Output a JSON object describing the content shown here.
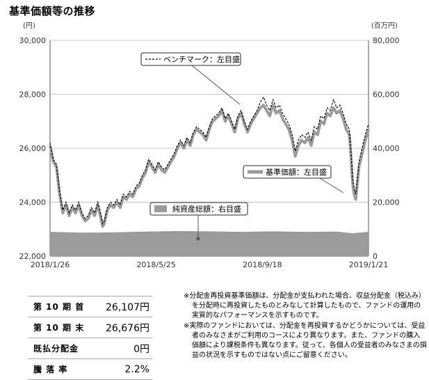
{
  "title": "基準価額等の推移",
  "chart_data": {
    "type": "line",
    "left_axis": {
      "unit": "(円)",
      "min": 22000,
      "max": 30000,
      "ticks": [
        "22,000",
        "24,000",
        "26,000",
        "28,000",
        "30,000"
      ],
      "tick_values": [
        22000,
        24000,
        26000,
        28000,
        30000
      ]
    },
    "right_axis": {
      "unit": "(百万円)",
      "min": 0,
      "max": 80000,
      "ticks": [
        "0",
        "20,000",
        "40,000",
        "60,000",
        "80,000"
      ],
      "tick_values": [
        0,
        20000,
        40000,
        60000,
        80000
      ]
    },
    "x_ticks": [
      "2018/1/26",
      "2018/5/25",
      "2018/9/18",
      "2019/1/21"
    ],
    "x_tick_positions": [
      0,
      0.3333,
      0.6667,
      1.0
    ],
    "grid": "horizontal",
    "series": [
      {
        "name": "基準価額：左目盛",
        "style": "thick gray line",
        "color": "#9b9b9b",
        "axis": "left",
        "points": [
          [
            0,
            26100
          ],
          [
            0.01,
            25500
          ],
          [
            0.02,
            25300
          ],
          [
            0.03,
            24300
          ],
          [
            0.04,
            23600
          ],
          [
            0.05,
            23900
          ],
          [
            0.06,
            23500
          ],
          [
            0.07,
            23800
          ],
          [
            0.08,
            23600
          ],
          [
            0.09,
            23900
          ],
          [
            0.1,
            23500
          ],
          [
            0.11,
            23300
          ],
          [
            0.12,
            23400
          ],
          [
            0.13,
            23700
          ],
          [
            0.14,
            23500
          ],
          [
            0.15,
            23900
          ],
          [
            0.16,
            23400
          ],
          [
            0.165,
            23100
          ],
          [
            0.17,
            23200
          ],
          [
            0.18,
            23700
          ],
          [
            0.19,
            23900
          ],
          [
            0.2,
            23800
          ],
          [
            0.21,
            24000
          ],
          [
            0.22,
            23800
          ],
          [
            0.23,
            24200
          ],
          [
            0.24,
            24100
          ],
          [
            0.25,
            24300
          ],
          [
            0.26,
            24200
          ],
          [
            0.27,
            24500
          ],
          [
            0.28,
            24600
          ],
          [
            0.29,
            24900
          ],
          [
            0.3,
            25100
          ],
          [
            0.31,
            25500
          ],
          [
            0.32,
            25300
          ],
          [
            0.33,
            25100
          ],
          [
            0.34,
            25400
          ],
          [
            0.35,
            25200
          ],
          [
            0.36,
            25100
          ],
          [
            0.37,
            25300
          ],
          [
            0.38,
            25500
          ],
          [
            0.39,
            25700
          ],
          [
            0.4,
            26000
          ],
          [
            0.41,
            26200
          ],
          [
            0.42,
            26000
          ],
          [
            0.43,
            26300
          ],
          [
            0.44,
            26100
          ],
          [
            0.45,
            26500
          ],
          [
            0.46,
            26700
          ],
          [
            0.47,
            26600
          ],
          [
            0.48,
            26500
          ],
          [
            0.49,
            26300
          ],
          [
            0.5,
            26700
          ],
          [
            0.51,
            27000
          ],
          [
            0.52,
            27100
          ],
          [
            0.53,
            27200
          ],
          [
            0.54,
            27400
          ],
          [
            0.55,
            27000
          ],
          [
            0.56,
            27200
          ],
          [
            0.57,
            26900
          ],
          [
            0.58,
            26600
          ],
          [
            0.59,
            27100
          ],
          [
            0.6,
            27300
          ],
          [
            0.61,
            26900
          ],
          [
            0.62,
            26600
          ],
          [
            0.63,
            26900
          ],
          [
            0.64,
            27100
          ],
          [
            0.65,
            27300
          ],
          [
            0.66,
            27500
          ],
          [
            0.67,
            27600
          ],
          [
            0.68,
            27400
          ],
          [
            0.69,
            27200
          ],
          [
            0.7,
            27600
          ],
          [
            0.71,
            27300
          ],
          [
            0.72,
            27400
          ],
          [
            0.73,
            27100
          ],
          [
            0.74,
            26900
          ],
          [
            0.75,
            26700
          ],
          [
            0.76,
            26300
          ],
          [
            0.77,
            25700
          ],
          [
            0.78,
            26100
          ],
          [
            0.79,
            26300
          ],
          [
            0.8,
            26200
          ],
          [
            0.81,
            26400
          ],
          [
            0.82,
            26100
          ],
          [
            0.83,
            26600
          ],
          [
            0.84,
            26500
          ],
          [
            0.85,
            27000
          ],
          [
            0.86,
            26900
          ],
          [
            0.87,
            27300
          ],
          [
            0.88,
            27200
          ],
          [
            0.89,
            27500
          ],
          [
            0.9,
            27300
          ],
          [
            0.91,
            27400
          ],
          [
            0.92,
            27100
          ],
          [
            0.93,
            26700
          ],
          [
            0.94,
            26500
          ],
          [
            0.945,
            25700
          ],
          [
            0.95,
            24700
          ],
          [
            0.955,
            24300
          ],
          [
            0.96,
            24100
          ],
          [
            0.965,
            24700
          ],
          [
            0.97,
            25300
          ],
          [
            0.98,
            25800
          ],
          [
            0.99,
            26300
          ],
          [
            1.0,
            26700
          ]
        ]
      },
      {
        "name": "ベンチマーク：左目盛",
        "style": "dashed black line",
        "color": "#000000",
        "axis": "left",
        "points": [
          [
            0,
            26200
          ],
          [
            0.01,
            25600
          ],
          [
            0.02,
            25400
          ],
          [
            0.03,
            24400
          ],
          [
            0.04,
            23700
          ],
          [
            0.05,
            24000
          ],
          [
            0.06,
            23600
          ],
          [
            0.07,
            23900
          ],
          [
            0.08,
            23700
          ],
          [
            0.09,
            24000
          ],
          [
            0.1,
            23600
          ],
          [
            0.11,
            23400
          ],
          [
            0.12,
            23500
          ],
          [
            0.13,
            23800
          ],
          [
            0.14,
            23600
          ],
          [
            0.15,
            24000
          ],
          [
            0.16,
            23500
          ],
          [
            0.165,
            23200
          ],
          [
            0.17,
            23300
          ],
          [
            0.18,
            23800
          ],
          [
            0.19,
            24000
          ],
          [
            0.2,
            23900
          ],
          [
            0.21,
            24100
          ],
          [
            0.22,
            23900
          ],
          [
            0.23,
            24300
          ],
          [
            0.24,
            24200
          ],
          [
            0.25,
            24400
          ],
          [
            0.26,
            24300
          ],
          [
            0.27,
            24600
          ],
          [
            0.28,
            24700
          ],
          [
            0.29,
            25000
          ],
          [
            0.3,
            25200
          ],
          [
            0.31,
            25600
          ],
          [
            0.32,
            25400
          ],
          [
            0.33,
            25200
          ],
          [
            0.34,
            25500
          ],
          [
            0.35,
            25300
          ],
          [
            0.36,
            25200
          ],
          [
            0.37,
            25400
          ],
          [
            0.38,
            25600
          ],
          [
            0.39,
            25800
          ],
          [
            0.4,
            26100
          ],
          [
            0.41,
            26300
          ],
          [
            0.42,
            26100
          ],
          [
            0.43,
            26400
          ],
          [
            0.44,
            26200
          ],
          [
            0.45,
            26600
          ],
          [
            0.46,
            26800
          ],
          [
            0.47,
            26700
          ],
          [
            0.48,
            26600
          ],
          [
            0.49,
            26400
          ],
          [
            0.5,
            26800
          ],
          [
            0.51,
            27100
          ],
          [
            0.52,
            27200
          ],
          [
            0.53,
            27300
          ],
          [
            0.54,
            27500
          ],
          [
            0.55,
            27100
          ],
          [
            0.56,
            27300
          ],
          [
            0.57,
            27000
          ],
          [
            0.58,
            26700
          ],
          [
            0.59,
            27200
          ],
          [
            0.6,
            27400
          ],
          [
            0.61,
            27000
          ],
          [
            0.62,
            26700
          ],
          [
            0.63,
            27000
          ],
          [
            0.64,
            27200
          ],
          [
            0.65,
            27400
          ],
          [
            0.66,
            27700
          ],
          [
            0.67,
            27900
          ],
          [
            0.68,
            27600
          ],
          [
            0.69,
            27400
          ],
          [
            0.7,
            27800
          ],
          [
            0.71,
            27500
          ],
          [
            0.72,
            27600
          ],
          [
            0.73,
            27300
          ],
          [
            0.74,
            27100
          ],
          [
            0.75,
            26900
          ],
          [
            0.76,
            26500
          ],
          [
            0.77,
            25900
          ],
          [
            0.78,
            26300
          ],
          [
            0.79,
            26500
          ],
          [
            0.8,
            26400
          ],
          [
            0.81,
            26600
          ],
          [
            0.82,
            26300
          ],
          [
            0.83,
            26800
          ],
          [
            0.84,
            26700
          ],
          [
            0.85,
            27200
          ],
          [
            0.86,
            27100
          ],
          [
            0.87,
            27500
          ],
          [
            0.88,
            27400
          ],
          [
            0.89,
            27800
          ],
          [
            0.9,
            27500
          ],
          [
            0.91,
            27600
          ],
          [
            0.92,
            27300
          ],
          [
            0.93,
            26900
          ],
          [
            0.94,
            26700
          ],
          [
            0.945,
            25900
          ],
          [
            0.95,
            24900
          ],
          [
            0.955,
            24500
          ],
          [
            0.96,
            24300
          ],
          [
            0.965,
            24900
          ],
          [
            0.97,
            25500
          ],
          [
            0.98,
            26000
          ],
          [
            0.99,
            26500
          ],
          [
            1.0,
            26900
          ]
        ]
      },
      {
        "name": "純資産総額：右目盛",
        "style": "gray area",
        "color": "#9b9b9b",
        "axis": "right",
        "points": [
          [
            0,
            9000
          ],
          [
            0.1,
            8700
          ],
          [
            0.2,
            8800
          ],
          [
            0.3,
            9100
          ],
          [
            0.4,
            9300
          ],
          [
            0.5,
            9200
          ],
          [
            0.6,
            9000
          ],
          [
            0.7,
            9200
          ],
          [
            0.8,
            9000
          ],
          [
            0.9,
            9100
          ],
          [
            0.95,
            8500
          ],
          [
            1.0,
            9000
          ]
        ]
      }
    ]
  },
  "legends": {
    "benchmark": "ベンチマーク：左目盛",
    "nav": "基準価額：左目盛",
    "assets": "純資産総額：右目盛"
  },
  "summary": [
    {
      "label": "第 10 期 首",
      "value": "26,107円"
    },
    {
      "label": "第 10 期 末",
      "value": "26,676円"
    },
    {
      "label": "既払分配金",
      "value": "0円"
    },
    {
      "label": "騰 落 率",
      "value": "2.2%"
    }
  ],
  "notes": [
    "※分配金再投資基準価額は、分配金が支払われた場合、収益分配金（税込み）を分配時に再投資したものとみなして計算したもので、ファンドの運用の実質的なパフォーマンスを示すものです。",
    "※実際のファンドにおいては、分配金を再投資するかどうかについては、受益者のみなさまがご利用のコースにより異なります。また、ファンドの購入価額により課税条件も異なります。従って、各個人の受益者のみなさまの損益の状況を示すものではない点にご留意ください。"
  ]
}
